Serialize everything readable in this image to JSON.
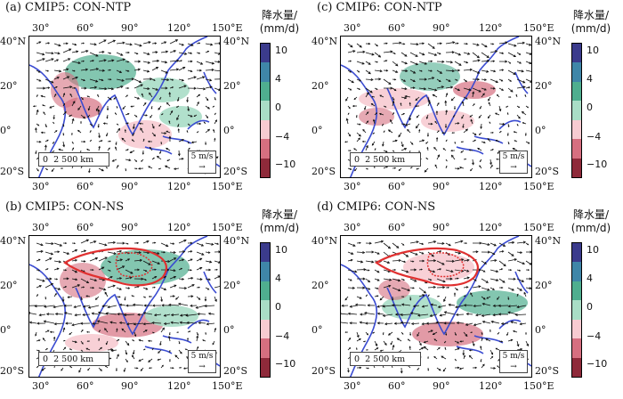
{
  "panels": [
    {
      "title": "(a) CMIP5: CON-NTP"
    },
    {
      "title": "(c) CMIP6: CON-NTP"
    },
    {
      "title": "(b) CMIP5: CON-NS"
    },
    {
      "title": "(d) CMIP6: CON-NS"
    }
  ],
  "axes": {
    "lon_ticks": [
      "30°",
      "60°",
      "90°",
      "120°",
      "150°E"
    ],
    "lat_ticks": [
      "40°N",
      "20°",
      "0°",
      "20°S"
    ],
    "lat_ticks_right": [
      "40°N",
      "20°",
      "0°",
      "20°S"
    ]
  },
  "colorbar": {
    "title": "降水量/\n(mm/d)",
    "ticks": [
      "10",
      "4",
      "0",
      "−4",
      "−10"
    ],
    "colors": [
      "#3b3b8c",
      "#3f86a8",
      "#4fae8f",
      "#a9ddc6",
      "#f7cbd1",
      "#d66f80",
      "#8e2a3a"
    ]
  },
  "scale_bar": {
    "label": "0",
    "value": "2 500 km"
  },
  "reference_vector": {
    "label": "5 m/s",
    "arrow": "→"
  },
  "colors": {
    "coast": "#3a4bd1",
    "plateau_outline": "#e03030",
    "wind_vector": "#111111"
  }
}
